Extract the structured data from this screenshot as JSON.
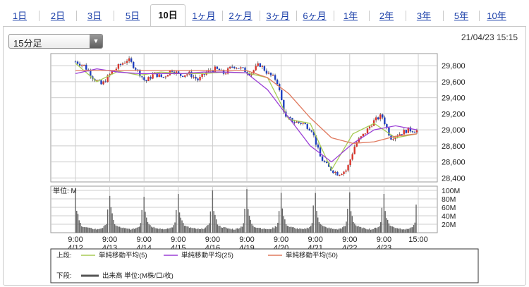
{
  "tabs": [
    {
      "label": "1日",
      "active": false
    },
    {
      "label": "2日",
      "active": false
    },
    {
      "label": "3日",
      "active": false
    },
    {
      "label": "5日",
      "active": false
    },
    {
      "label": "10日",
      "active": true
    },
    {
      "label": "1ヶ月",
      "active": false
    },
    {
      "label": "2ヶ月",
      "active": false
    },
    {
      "label": "3ヶ月",
      "active": false
    },
    {
      "label": "6ヶ月",
      "active": false
    },
    {
      "label": "1年",
      "active": false
    },
    {
      "label": "2年",
      "active": false
    },
    {
      "label": "3年",
      "active": false
    },
    {
      "label": "5年",
      "active": false
    },
    {
      "label": "10年",
      "active": false
    }
  ],
  "interval_select": {
    "value": "15分足"
  },
  "timestamp": "21/04/23 15:15",
  "colors": {
    "candle_up": "#d9342b",
    "candle_down": "#1f3fbf",
    "wick": "#555555",
    "ma5": "#a8cc55",
    "ma25": "#9b3fd6",
    "ma50": "#e07a5f",
    "volume": "#666666",
    "grid": "#cccccc"
  },
  "chart_data": [
    {
      "type": "line",
      "title": "",
      "x_ticks": [
        {
          "time": "9:00",
          "date": "4/12"
        },
        {
          "time": "9:00",
          "date": "4/13"
        },
        {
          "time": "9:00",
          "date": "4/14"
        },
        {
          "time": "9:00",
          "date": "4/15"
        },
        {
          "time": "9:00",
          "date": "4/16"
        },
        {
          "time": "9:00",
          "date": "4/19"
        },
        {
          "time": "9:00",
          "date": "4/20"
        },
        {
          "time": "9:00",
          "date": "4/21"
        },
        {
          "time": "9:00",
          "date": "4/22"
        },
        {
          "time": "9:00",
          "date": "4/23"
        },
        {
          "time": "15:00",
          "date": ""
        }
      ],
      "y_ticks": [
        "29,800",
        "29,600",
        "29,400",
        "29,200",
        "29,000",
        "28,800",
        "28,600",
        "28,400"
      ],
      "y_tick_values": [
        29800,
        29600,
        29400,
        29200,
        29000,
        28800,
        28600,
        28400
      ],
      "ylim": [
        28350,
        29950
      ],
      "grid": true,
      "series": [
        {
          "name": "単純移動平均(5)",
          "color_key": "ma5",
          "values": [
            29830,
            29600,
            29730,
            29680,
            29720,
            29700,
            29700,
            29720,
            29710,
            29650,
            29130,
            29080,
            28500,
            28950,
            29080,
            28900,
            28950
          ]
        },
        {
          "name": "単純移動平均(25)",
          "color_key": "ma25",
          "values": [
            29700,
            29760,
            29720,
            29700,
            29700,
            29700,
            29720,
            29720,
            29710,
            29500,
            29150,
            28800,
            28600,
            28830,
            29000,
            29050,
            29000
          ]
        },
        {
          "name": "単純移動平均(50)",
          "color_key": "ma50",
          "values": [
            29740,
            29740,
            29740,
            29740,
            29740,
            29740,
            29740,
            29740,
            29740,
            29650,
            29450,
            29150,
            28900,
            28830,
            28850,
            28920,
            28950
          ]
        }
      ],
      "price_path": [
        29850,
        29800,
        29650,
        29560,
        29700,
        29800,
        29880,
        29750,
        29600,
        29700,
        29650,
        29750,
        29680,
        29700,
        29620,
        29720,
        29760,
        29700,
        29800,
        29760,
        29700,
        29820,
        29700,
        29620,
        29150,
        29100,
        29080,
        29000,
        28650,
        28520,
        28450,
        28500,
        28830,
        28950,
        29100,
        29180,
        28900,
        28950,
        29000,
        28990
      ],
      "legend_label": "上段:"
    },
    {
      "type": "bar",
      "title": "",
      "unit_label": "単位: M",
      "y_ticks": [
        "100M",
        "80M",
        "60M",
        "40M",
        "20M"
      ],
      "y_tick_values": [
        100,
        80,
        60,
        40,
        20
      ],
      "ylim": [
        0,
        110
      ],
      "sessions": 10,
      "session_pattern": [
        92,
        55,
        40,
        28,
        22,
        18,
        15,
        14,
        13,
        12,
        12,
        11,
        10,
        10,
        9,
        9,
        9,
        8,
        8,
        9,
        10,
        11,
        12,
        14,
        16,
        24,
        58
      ],
      "series_name": "出来高 単位:(M株/口/枚)",
      "legend_label": "下段:"
    }
  ]
}
